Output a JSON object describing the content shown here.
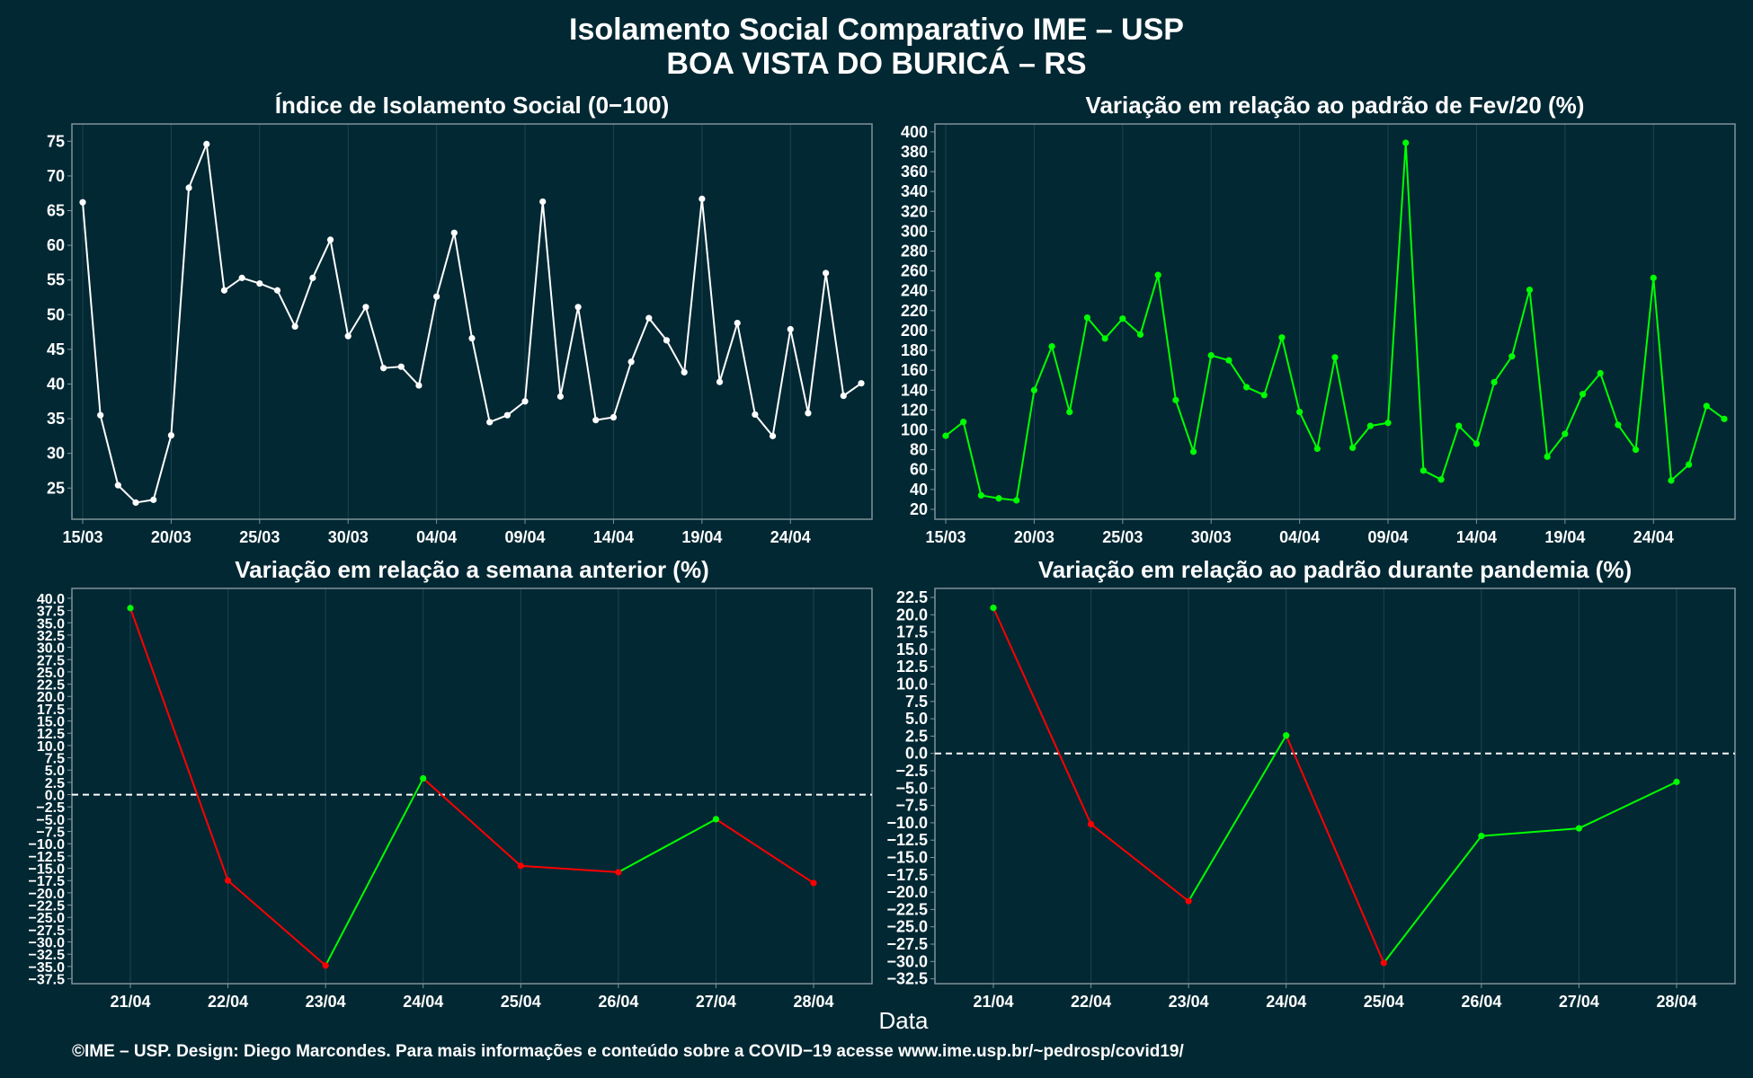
{
  "figure": {
    "title_line1": "Isolamento Social Comparativo IME – USP",
    "title_line2": "BOA VISTA DO BURICÁ – RS",
    "xlabel": "Data",
    "footer": "©IME – USP. Design: Diego Marcondes. Para mais informações e conteúdo sobre a COVID−19 acesse www.ime.usp.br/~pedrosp/covid19/",
    "colors": {
      "background": "#022833",
      "panel_border": "#7f9399",
      "grid": "#1d4450",
      "white": "#ffffff",
      "green": "#00ff00",
      "red": "#ff0000"
    }
  },
  "chart_data": [
    {
      "id": "index",
      "type": "line",
      "title": "Índice de Isolamento Social (0−100)",
      "line_color": "#ffffff",
      "x": [
        "15/03",
        "16/03",
        "17/03",
        "18/03",
        "19/03",
        "20/03",
        "21/03",
        "22/03",
        "23/03",
        "24/03",
        "25/03",
        "26/03",
        "27/03",
        "28/03",
        "29/03",
        "30/03",
        "31/03",
        "01/04",
        "02/04",
        "03/04",
        "04/04",
        "05/04",
        "06/04",
        "07/04",
        "08/04",
        "09/04",
        "10/04",
        "11/04",
        "12/04",
        "13/04",
        "14/04",
        "15/04",
        "16/04",
        "17/04",
        "18/04",
        "19/04",
        "20/04",
        "21/04",
        "22/04",
        "23/04",
        "24/04",
        "25/04",
        "26/04",
        "27/04",
        "28/04"
      ],
      "values": [
        66.2,
        35.5,
        25.4,
        22.9,
        23.3,
        32.6,
        68.3,
        74.6,
        53.5,
        55.3,
        54.5,
        53.5,
        48.3,
        55.3,
        60.8,
        46.9,
        51.1,
        42.3,
        42.5,
        39.8,
        52.6,
        61.8,
        46.6,
        34.5,
        35.5,
        37.5,
        66.3,
        38.2,
        51.1,
        34.8,
        35.2,
        43.2,
        49.5,
        46.3,
        41.7,
        66.7,
        40.3,
        48.8,
        35.6,
        32.5,
        47.9,
        35.8,
        56.0,
        38.3,
        40.1
      ],
      "xticks": [
        "15/03",
        "20/03",
        "25/03",
        "30/03",
        "04/04",
        "09/04",
        "14/04",
        "19/04",
        "24/04"
      ],
      "yticks": [
        25,
        30,
        35,
        40,
        45,
        50,
        55,
        60,
        65,
        70,
        75
      ],
      "ylim": [
        20.5,
        77.5
      ]
    },
    {
      "id": "feb",
      "type": "line",
      "title": "Variação em relação ao padrão de Fev/20 (%)",
      "line_color": "#00ff00",
      "x": [
        "15/03",
        "16/03",
        "17/03",
        "18/03",
        "19/03",
        "20/03",
        "21/03",
        "22/03",
        "23/03",
        "24/03",
        "25/03",
        "26/03",
        "27/03",
        "28/03",
        "29/03",
        "30/03",
        "31/03",
        "01/04",
        "02/04",
        "03/04",
        "04/04",
        "05/04",
        "06/04",
        "07/04",
        "08/04",
        "09/04",
        "10/04",
        "11/04",
        "12/04",
        "13/04",
        "14/04",
        "15/04",
        "16/04",
        "17/04",
        "18/04",
        "19/04",
        "20/04",
        "21/04",
        "22/04",
        "23/04",
        "24/04",
        "25/04",
        "26/04",
        "27/04",
        "28/04"
      ],
      "values": [
        94,
        108,
        34,
        31,
        29,
        140,
        184,
        118,
        213,
        192,
        212,
        196,
        256,
        130,
        78,
        175,
        170,
        143,
        135,
        193,
        118,
        81,
        173,
        82,
        104,
        107,
        389,
        59,
        50,
        104,
        86,
        148,
        174,
        241,
        73,
        96,
        136,
        157,
        105,
        80,
        253,
        49,
        65,
        124,
        111
      ],
      "xticks": [
        "15/03",
        "20/03",
        "25/03",
        "30/03",
        "04/04",
        "09/04",
        "14/04",
        "19/04",
        "24/04"
      ],
      "yticks": [
        20,
        40,
        60,
        80,
        100,
        120,
        140,
        160,
        180,
        200,
        220,
        240,
        260,
        280,
        300,
        320,
        340,
        360,
        380,
        400
      ],
      "ylim": [
        10,
        408
      ]
    },
    {
      "id": "week",
      "type": "line",
      "title": "Variação em relação a semana anterior (%)",
      "up_color": "#00ff00",
      "down_color": "#ff0000",
      "x": [
        "21/04",
        "22/04",
        "23/04",
        "24/04",
        "25/04",
        "26/04",
        "27/04",
        "28/04"
      ],
      "values": [
        38.0,
        -17.5,
        -34.8,
        3.3,
        -14.5,
        -15.8,
        -5.0,
        -18.0
      ],
      "xticks": [
        "21/04",
        "22/04",
        "23/04",
        "24/04",
        "25/04",
        "26/04",
        "27/04",
        "28/04"
      ],
      "yticks": [
        40,
        37.5,
        35,
        32.5,
        30,
        27.5,
        25,
        22.5,
        20,
        17.5,
        15,
        12.5,
        10,
        7.5,
        5,
        2.5,
        0,
        -2.5,
        -5,
        -7.5,
        -10,
        -12.5,
        -15,
        -17.5,
        -20,
        -22.5,
        -25,
        -27.5,
        -30,
        -32.5,
        -35,
        -37.5
      ],
      "ylim": [
        -38.5,
        42
      ],
      "reference_line": 0
    },
    {
      "id": "pandemic",
      "type": "line",
      "title": "Variação em relação ao padrão durante pandemia (%)",
      "up_color": "#00ff00",
      "down_color": "#ff0000",
      "x": [
        "21/04",
        "22/04",
        "23/04",
        "24/04",
        "25/04",
        "26/04",
        "27/04",
        "28/04"
      ],
      "values": [
        21.0,
        -10.2,
        -21.3,
        2.6,
        -30.2,
        -11.9,
        -10.8,
        -4.1
      ],
      "xticks": [
        "21/04",
        "22/04",
        "23/04",
        "24/04",
        "25/04",
        "26/04",
        "27/04",
        "28/04"
      ],
      "yticks": [
        22.5,
        20,
        17.5,
        15,
        12.5,
        10,
        7.5,
        5,
        2.5,
        0,
        -2.5,
        -5,
        -7.5,
        -10,
        -12.5,
        -15,
        -17.5,
        -20,
        -22.5,
        -25,
        -27.5,
        -30,
        -32.5
      ],
      "ylim": [
        -33.2,
        23.8
      ],
      "reference_line": 0
    }
  ]
}
